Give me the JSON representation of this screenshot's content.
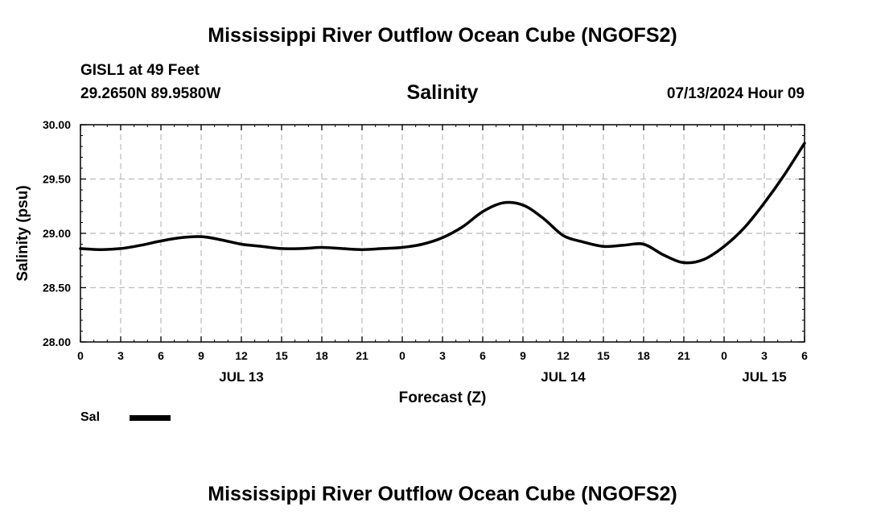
{
  "header": {
    "main_title": "Mississippi River Outflow Ocean Cube (NGOFS2)",
    "station": "GISL1 at 49 Feet",
    "coords": "29.2650N  89.9580W",
    "plot_title": "Salinity",
    "datetime": "07/13/2024 Hour 09"
  },
  "footer": {
    "title": "Mississippi River Outflow Ocean Cube (NGOFS2)"
  },
  "legend": {
    "label": "Sal",
    "color": "#000000"
  },
  "chart_data": {
    "type": "line",
    "xlabel": "Forecast (Z)",
    "ylabel": "Salinity (psu)",
    "xlim": [
      0,
      54
    ],
    "ylim": [
      28.0,
      30.0
    ],
    "yticks": [
      28.0,
      28.5,
      29.0,
      29.5,
      30.0
    ],
    "ytick_labels": [
      "28.00",
      "28.50",
      "29.00",
      "29.50",
      "30.00"
    ],
    "xticks": [
      0,
      3,
      6,
      9,
      12,
      15,
      18,
      21,
      24,
      27,
      30,
      33,
      36,
      39,
      42,
      45,
      48,
      51,
      54
    ],
    "xtick_labels": [
      "0",
      "3",
      "6",
      "9",
      "12",
      "15",
      "18",
      "21",
      "0",
      "3",
      "6",
      "9",
      "12",
      "15",
      "18",
      "21",
      "0",
      "3",
      "6"
    ],
    "day_labels": [
      {
        "x": 12,
        "label": "JUL 13"
      },
      {
        "x": 36,
        "label": "JUL 14"
      },
      {
        "x": 51,
        "label": "JUL 15"
      }
    ],
    "grid": true,
    "series": [
      {
        "name": "Sal",
        "x": [
          0,
          1.5,
          3,
          4.5,
          6,
          7.5,
          9,
          10.5,
          12,
          13.5,
          15,
          16.5,
          18,
          19.5,
          21,
          22.5,
          24,
          25.5,
          27,
          28.5,
          30,
          31.5,
          33,
          34.5,
          36,
          37.5,
          39,
          40.5,
          42,
          43.5,
          45,
          46.5,
          48,
          49.5,
          51,
          52.5,
          54
        ],
        "values": [
          28.86,
          28.85,
          28.86,
          28.89,
          28.93,
          28.96,
          28.97,
          28.94,
          28.9,
          28.88,
          28.86,
          28.86,
          28.87,
          28.86,
          28.85,
          28.86,
          28.87,
          28.9,
          28.96,
          29.06,
          29.2,
          29.28,
          29.26,
          29.14,
          28.98,
          28.92,
          28.88,
          28.89,
          28.9,
          28.8,
          28.73,
          28.76,
          28.88,
          29.05,
          29.28,
          29.54,
          29.83
        ]
      }
    ]
  }
}
